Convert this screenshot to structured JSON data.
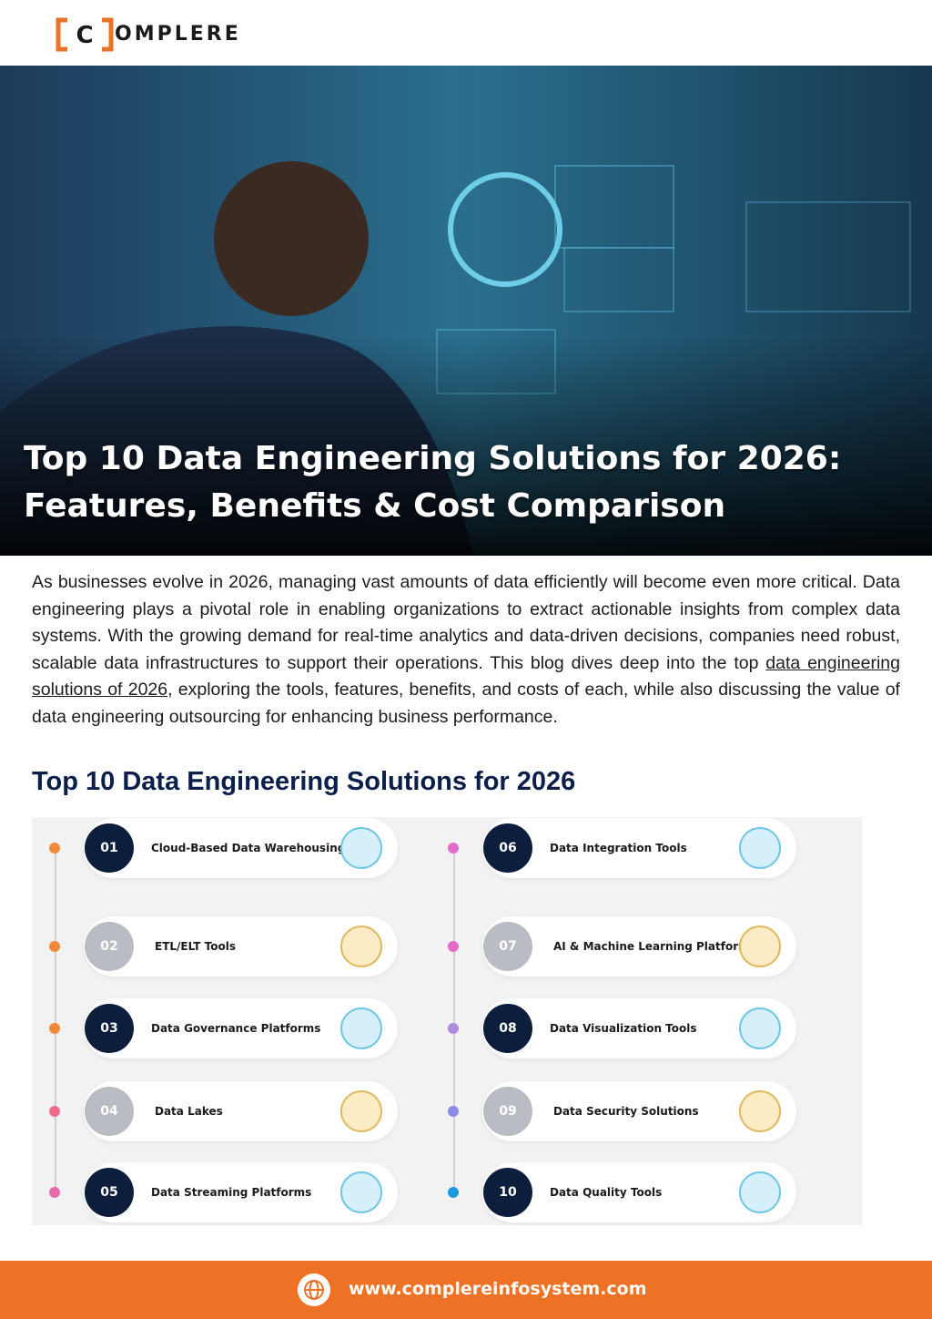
{
  "logo": {
    "mark": "C",
    "text": "OMPLERE"
  },
  "hero": {
    "title_line_1": "Top 10 Data Engineering Solutions for 2026:",
    "title_line_2": "Features, Benefits & Cost Comparison"
  },
  "intro": {
    "before_link": "As businesses evolve in 2026, managing vast amounts of data efficiently will become even more critical. Data engineering plays a pivotal role in enabling organizations to extract actionable insights from complex data systems. With the growing demand for real-time analytics and data-driven decisions, companies need robust, scalable data infrastructures to support their operations. This blog dives deep into the top ",
    "link": "data engineering solutions of 2026",
    "after_link": ", exploring the tools, features, benefits, and costs of each, while also discussing the value of data engineering outsourcing for enhancing business performance."
  },
  "section": {
    "heading": "Top 10 Data Engineering Solutions for 2026"
  },
  "list": {
    "items": [
      {
        "number": "01",
        "label": "Cloud-Based Data Warehousing"
      },
      {
        "number": "02",
        "label": "ETL/ELT Tools"
      },
      {
        "number": "03",
        "label": "Data Governance Platforms"
      },
      {
        "number": "04",
        "label": "Data Lakes"
      },
      {
        "number": "05",
        "label": "Data Streaming Platforms"
      },
      {
        "number": "06",
        "label": "Data Integration Tools"
      },
      {
        "number": "07",
        "label": "AI & Machine Learning Platforms"
      },
      {
        "number": "08",
        "label": "Data Visualization Tools"
      },
      {
        "number": "09",
        "label": "Data Security Solutions"
      },
      {
        "number": "10",
        "label": "Data Quality Tools"
      }
    ]
  },
  "footer": {
    "url": "www.complereinfosystem.com"
  }
}
